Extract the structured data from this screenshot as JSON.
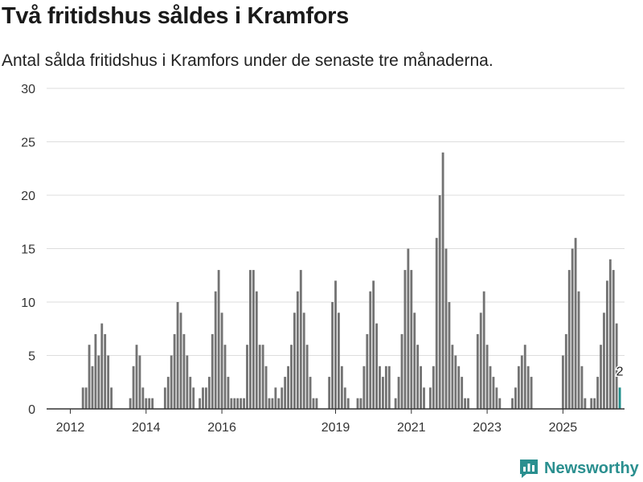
{
  "header": {
    "title": "Två fritidshus såldes i Kramfors",
    "subtitle": "Antal sålda fritidshus i Kramfors under de senaste tre månaderna."
  },
  "brand": {
    "name": "Newsworthy"
  },
  "colors": {
    "bar": "#737373",
    "highlight": "#21908c",
    "grid": "#dddddd",
    "axis": "#333333",
    "text": "#333333"
  },
  "chart_data": {
    "type": "bar",
    "title": "Två fritidshus såldes i Kramfors",
    "subtitle": "Antal sålda fritidshus i Kramfors under de senaste tre månaderna.",
    "xlabel": "",
    "ylabel": "",
    "ylim": [
      0,
      30
    ],
    "yticks": [
      "0",
      "5",
      "10",
      "15",
      "20",
      "25",
      "30"
    ],
    "grid": true,
    "x_start": "2011-09",
    "interval": "month",
    "xticks": [
      {
        "label": "2012",
        "index": 6
      },
      {
        "label": "2014",
        "index": 30
      },
      {
        "label": "2016",
        "index": 54
      },
      {
        "label": "2019",
        "index": 90
      },
      {
        "label": "2021",
        "index": 114
      },
      {
        "label": "2023",
        "index": 138
      },
      {
        "label": "2025",
        "index": 162
      }
    ],
    "values": [
      0,
      0,
      0,
      0,
      0,
      0,
      0,
      0,
      0,
      0,
      2,
      2,
      6,
      4,
      7,
      5,
      8,
      7,
      5,
      2,
      0,
      0,
      0,
      0,
      0,
      1,
      4,
      6,
      5,
      2,
      1,
      1,
      1,
      0,
      0,
      0,
      2,
      3,
      5,
      7,
      10,
      9,
      7,
      5,
      3,
      2,
      0,
      1,
      2,
      2,
      3,
      7,
      11,
      13,
      9,
      6,
      3,
      1,
      1,
      1,
      1,
      1,
      6,
      13,
      13,
      11,
      6,
      6,
      4,
      1,
      1,
      2,
      1,
      2,
      3,
      4,
      6,
      9,
      11,
      13,
      9,
      6,
      3,
      1,
      1,
      0,
      0,
      0,
      3,
      10,
      12,
      9,
      4,
      2,
      1,
      0,
      0,
      1,
      1,
      4,
      7,
      11,
      12,
      8,
      4,
      3,
      4,
      4,
      0,
      1,
      3,
      7,
      13,
      15,
      13,
      9,
      6,
      4,
      2,
      0,
      2,
      4,
      16,
      20,
      24,
      15,
      10,
      6,
      5,
      4,
      3,
      1,
      1,
      0,
      0,
      7,
      9,
      11,
      6,
      4,
      3,
      2,
      1,
      0,
      0,
      0,
      1,
      2,
      4,
      5,
      6,
      4,
      3,
      0,
      0,
      0,
      0,
      0,
      0,
      0,
      0,
      0,
      5,
      7,
      13,
      15,
      16,
      11,
      4,
      1,
      0,
      1,
      1,
      3,
      6,
      9,
      12,
      14,
      13,
      8,
      2
    ],
    "last_label": "2"
  }
}
